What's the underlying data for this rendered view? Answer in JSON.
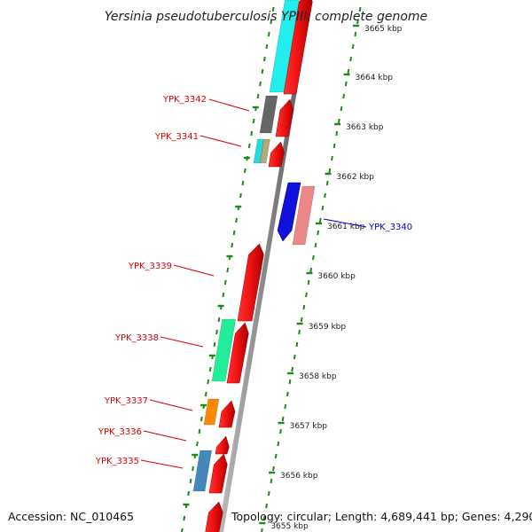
{
  "title": "Yersinia pseudotuberculosis YPIII, complete genome",
  "accession": "Accession: NC_010465",
  "topology": "Topology: circular; Length: 4,689,441 bp; Genes: 4,290",
  "colors": {
    "forward_cds": "#ee1111",
    "reverse_cds_highlight": "#1111dd",
    "reverse_cds_pale": "#ee8888",
    "gene_label": "#dd0000",
    "highlight_label": "#0000cc",
    "backbone": "#888888",
    "tick": "#1a8a1a"
  },
  "scale": {
    "unit": "kbp",
    "tick_labels": [
      "3655 kbp",
      "3656 kbp",
      "3657 kbp",
      "3658 kbp",
      "3659 kbp",
      "3660 kbp",
      "3661 kbp",
      "3662 kbp",
      "3663 kbp",
      "3664 kbp",
      "3665 kbp"
    ]
  },
  "genes": [
    {
      "label": "YPK_3342",
      "strand": "forward",
      "color": "#ee1111",
      "highlight": false
    },
    {
      "label": "YPK_3341",
      "strand": "forward",
      "color": "#ee1111",
      "highlight": false
    },
    {
      "label": "YPK_3340",
      "strand": "reverse",
      "color": "#1111dd",
      "highlight": true
    },
    {
      "label": "YPK_3339",
      "strand": "forward",
      "color": "#ee1111",
      "highlight": false
    },
    {
      "label": "YPK_3338",
      "strand": "forward",
      "color": "#ee1111",
      "highlight": false
    },
    {
      "label": "YPK_3337",
      "strand": "forward",
      "color": "#ee1111",
      "highlight": false
    },
    {
      "label": "YPK_3336",
      "strand": "forward",
      "color": "#ee1111",
      "highlight": false
    },
    {
      "label": "YPK_3335",
      "strand": "forward",
      "color": "#ee1111",
      "highlight": false
    }
  ],
  "cog_blocks": [
    {
      "color": "#22eeee"
    },
    {
      "color": "#666666"
    },
    {
      "color": "#22dddd"
    },
    {
      "color": "#b8a878"
    },
    {
      "color": "#22ee99"
    },
    {
      "color": "#ff8800"
    },
    {
      "color": "#4488bb"
    }
  ]
}
